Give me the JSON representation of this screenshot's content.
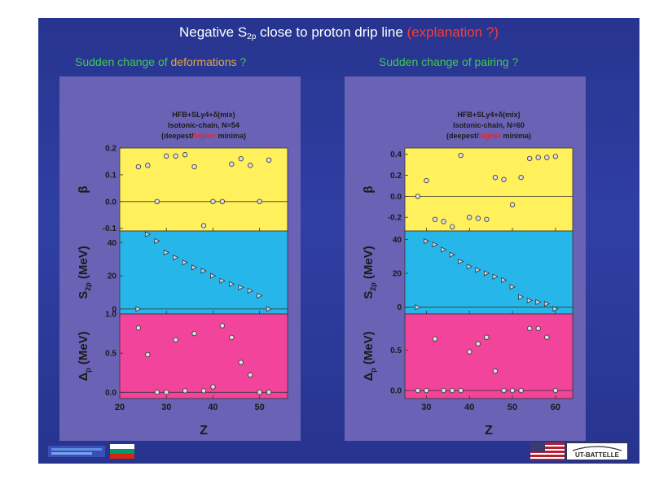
{
  "title": {
    "part1": "Negative S",
    "sub": "2p",
    "part2": " close to proton drip line ",
    "explanation": "(explanation ?)"
  },
  "questions": {
    "left": {
      "text": "Sudden change of ",
      "highlight": "deformations",
      "suffix": " ?"
    },
    "right": {
      "text": "Sudden change of pairing ?"
    }
  },
  "colors": {
    "beta_bg": "#fff05c",
    "s2p_bg": "#27b6ea",
    "delta_bg": "#f2449a",
    "panel_bg": "#6a62b5",
    "slide_bg": "#2d3b9d",
    "title_red": "#ff3a2e",
    "question_green": "#41c94f"
  },
  "chart_data": [
    {
      "type": "scatter",
      "header": {
        "line1": "HFB+SLy4+δ(mix)",
        "line2": "Isotonic-chain, N=54",
        "line3_pre": "(deepest/",
        "line3_red": "higher",
        "line3_post": " minima)"
      },
      "xlabel": "Z",
      "xlim": [
        20,
        56
      ],
      "xticks": [
        20,
        30,
        40,
        50
      ],
      "subplots": [
        {
          "key": "beta",
          "ylabel": "β",
          "ylim": [
            -0.11,
            0.2
          ],
          "yticks": [
            {
              "v": -0.1,
              "t": "-0.1"
            },
            {
              "v": 0.0,
              "t": "0.0"
            },
            {
              "v": 0.1,
              "t": "0.1"
            },
            {
              "v": 0.2,
              "t": "0.2"
            }
          ],
          "x": [
            24,
            26,
            28,
            30,
            32,
            34,
            36,
            38,
            40,
            42,
            44,
            46,
            48,
            50,
            52
          ],
          "y": [
            0.13,
            0.135,
            0.0,
            0.17,
            0.17,
            0.175,
            0.13,
            -0.09,
            0.0,
            0.0,
            0.14,
            0.16,
            0.135,
            0.0,
            0.155
          ]
        },
        {
          "key": "s2p",
          "ylabel": "S2p (MeV)",
          "ylim": [
            -3,
            47
          ],
          "yticks": [
            {
              "v": 0,
              "t": "0"
            },
            {
              "v": 20,
              "t": "20"
            },
            {
              "v": 40,
              "t": "40"
            }
          ],
          "x": [
            24,
            26,
            28,
            30,
            32,
            34,
            36,
            38,
            40,
            42,
            44,
            46,
            48,
            50,
            52
          ],
          "y": [
            0,
            45,
            41,
            34,
            31,
            28,
            25,
            23,
            20,
            17,
            15,
            13,
            11,
            8,
            0
          ]
        },
        {
          "key": "delta",
          "ylabel": "Δp (MeV)",
          "ylim": [
            -0.08,
            1.0
          ],
          "yticks": [
            {
              "v": 0.0,
              "t": "0.0"
            },
            {
              "v": 0.5,
              "t": "0.5"
            },
            {
              "v": 1.0,
              "t": "1.0"
            }
          ],
          "x": [
            24,
            26,
            28,
            30,
            32,
            34,
            36,
            38,
            40,
            42,
            44,
            46,
            48,
            50,
            52
          ],
          "y": [
            0.82,
            0.48,
            0.0,
            0.0,
            0.67,
            0.02,
            0.75,
            0.02,
            0.07,
            0.85,
            0.7,
            0.38,
            0.22,
            0.0,
            0.0
          ]
        }
      ]
    },
    {
      "type": "scatter",
      "header": {
        "line1": "HFB+SLy4+δ(mix)",
        "line2": "Isotonic-chain, N=60",
        "line3_pre": "(deepest/",
        "line3_red": "higher",
        "line3_post": " minima)"
      },
      "xlabel": "Z",
      "xlim": [
        25,
        64
      ],
      "xticks": [
        30,
        40,
        50,
        60
      ],
      "subplots": [
        {
          "key": "beta",
          "ylabel": "β",
          "ylim": [
            -0.33,
            0.46
          ],
          "yticks": [
            {
              "v": -0.2,
              "t": "-0.2"
            },
            {
              "v": 0.0,
              "t": "0.0"
            },
            {
              "v": 0.2,
              "t": "0.2"
            },
            {
              "v": 0.4,
              "t": "0.4"
            }
          ],
          "x": [
            28,
            30,
            32,
            34,
            36,
            38,
            40,
            42,
            44,
            46,
            48,
            50,
            52,
            54,
            56,
            58,
            60
          ],
          "y": [
            0.0,
            0.15,
            -0.22,
            -0.24,
            -0.29,
            0.39,
            -0.2,
            -0.21,
            -0.22,
            0.18,
            0.16,
            -0.08,
            0.18,
            0.36,
            0.37,
            0.37,
            0.38
          ]
        },
        {
          "key": "s2p",
          "ylabel": "S2p (MeV)",
          "ylim": [
            -4,
            45
          ],
          "yticks": [
            {
              "v": 0,
              "t": "0"
            },
            {
              "v": 20,
              "t": "20"
            },
            {
              "v": 40,
              "t": "40"
            }
          ],
          "x": [
            28,
            30,
            32,
            34,
            36,
            38,
            40,
            42,
            44,
            46,
            48,
            50,
            52,
            54,
            56,
            58,
            60
          ],
          "y": [
            0,
            39,
            37,
            34,
            31,
            27,
            24,
            22,
            20,
            18,
            16,
            12,
            6,
            4,
            3,
            2,
            -1
          ]
        },
        {
          "key": "delta",
          "ylabel": "Δp (MeV)",
          "ylim": [
            -0.1,
            0.95
          ],
          "yticks": [
            {
              "v": 0.0,
              "t": "0.0"
            },
            {
              "v": 0.5,
              "t": "0.5"
            }
          ],
          "x": [
            28,
            30,
            32,
            34,
            36,
            38,
            40,
            42,
            44,
            46,
            48,
            50,
            52,
            54,
            56,
            58,
            60
          ],
          "y": [
            0.0,
            0.0,
            0.64,
            0.0,
            0.0,
            0.0,
            0.48,
            0.58,
            0.66,
            0.24,
            0.0,
            0.0,
            0.0,
            0.77,
            0.77,
            0.66,
            0.0
          ]
        }
      ]
    }
  ],
  "footer": {
    "left_logo_icon": "institution-logo-icon",
    "bulgaria_flag_icon": "bulgaria-flag-icon",
    "usa_flag_icon": "usa-flag-icon",
    "ut_battelle_logo": "UT-BATTELLE"
  }
}
